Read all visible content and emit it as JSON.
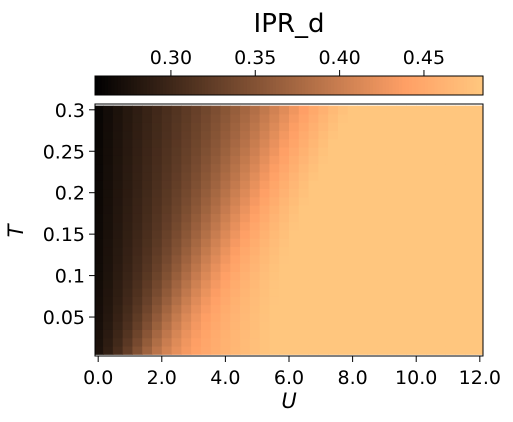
{
  "chart_data": {
    "type": "heatmap",
    "title": "IPR_d",
    "xlabel": "U",
    "ylabel": "T",
    "xlim": [
      -0.1,
      12.1
    ],
    "ylim": [
      0.003,
      0.307
    ],
    "x_ticks": [
      0,
      2,
      4,
      6,
      8,
      10,
      12
    ],
    "x_tick_labels": [
      "0.0",
      "2.0",
      "4.0",
      "6.0",
      "8.0",
      "10.0",
      "12.0"
    ],
    "y_ticks": [
      0.05,
      0.1,
      0.15,
      0.2,
      0.25,
      0.3
    ],
    "y_tick_labels": [
      "0.05",
      "0.1",
      "0.15",
      "0.2",
      "0.25",
      "0.3"
    ],
    "colorbar": {
      "colormap": "copper",
      "range": [
        0.255,
        0.485
      ],
      "ticks": [
        0.3,
        0.35,
        0.4,
        0.45
      ],
      "tick_labels": [
        "0.30",
        "0.35",
        "0.40",
        "0.45"
      ],
      "location": "top"
    },
    "grid": {
      "u_min": 0.0,
      "u_max": 12.0,
      "u_steps": 40,
      "t_min": 0.01,
      "t_max": 0.3,
      "t_steps": 30
    },
    "description_values": {
      "min_value": 0.258,
      "max_value": 0.485,
      "trend": "increases with U, saturating near 0.48 at large U; low-U region stays darker at higher T"
    },
    "colors": {
      "cmap_low": "#000000",
      "cmap_high": "#ffc77f"
    }
  }
}
